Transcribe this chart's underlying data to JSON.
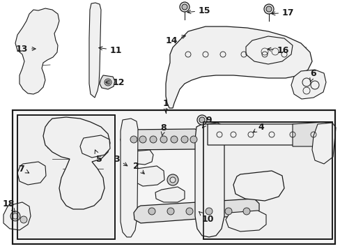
{
  "bg": "#ffffff",
  "fw": 4.89,
  "fh": 3.6,
  "dpi": 100,
  "gray_fill": "#f0f0f0",
  "dark_fill": "#e0e0e0",
  "lc": "#1a1a1a"
}
